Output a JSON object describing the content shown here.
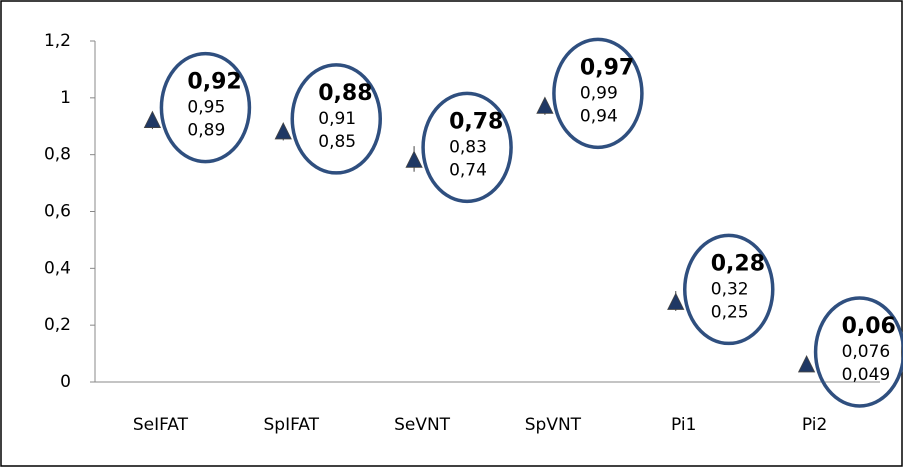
{
  "chart_data": {
    "type": "scatter",
    "categories": [
      "SeIFAT",
      "SpIFAT",
      "SeVNT",
      "SpVNT",
      "Pi1",
      "Pi2"
    ],
    "series": [
      {
        "color": "#1f3864",
        "values": [
          0.92,
          0.88,
          0.78,
          0.97,
          0.28,
          0.06
        ],
        "value_labels": [
          "0,92",
          "0,88",
          "0,78",
          "0,97",
          "0,28",
          "0,06"
        ],
        "upper": [
          0.95,
          0.91,
          0.83,
          0.99,
          0.32,
          0.076
        ],
        "upper_labels": [
          "0,95",
          "0,91",
          "0,83",
          "0,99",
          "0,32",
          "0,076"
        ],
        "lower": [
          0.89,
          0.85,
          0.74,
          0.94,
          0.25,
          0.049
        ],
        "lower_labels": [
          "0,89",
          "0,85",
          "0,74",
          "0,94",
          "0,25",
          "0,049"
        ]
      }
    ],
    "ylim": [
      0,
      1.2
    ],
    "yticks": [
      0,
      {
        "value": 0.2,
        "label": "0,2"
      },
      {
        "value": 0.4,
        "label": "0,4"
      },
      {
        "value": 0.6,
        "label": "0,6"
      },
      {
        "value": 0.8,
        "label": "0,8"
      },
      1,
      {
        "value": 1.2,
        "label": "1,2"
      }
    ],
    "grid": false
  }
}
